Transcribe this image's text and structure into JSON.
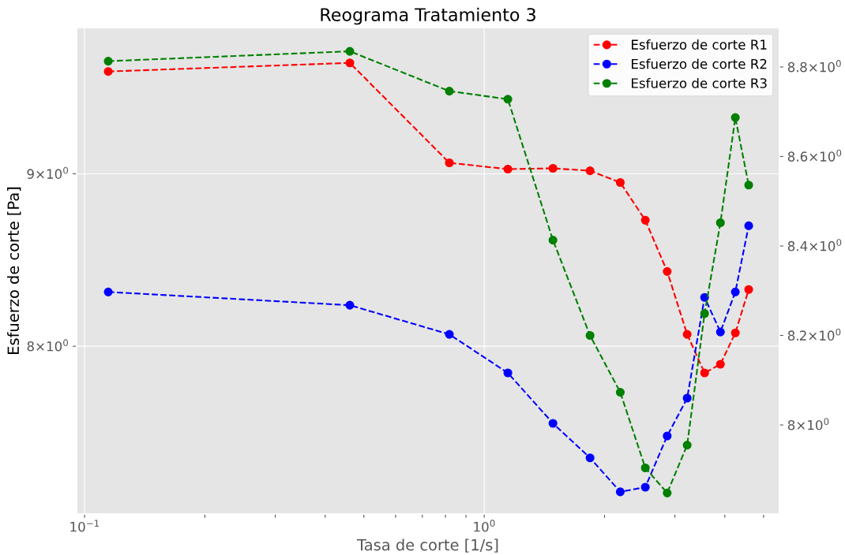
{
  "chart_data": {
    "type": "line",
    "title": "Reograma Tratamiento 3",
    "xlabel": "Tasa de corte [1/s]",
    "ylabel": "Esfuerzo de corte [Pa]",
    "x": [
      0.1146,
      0.461,
      0.818,
      1.146,
      1.486,
      1.84,
      2.19,
      2.53,
      2.87,
      3.22,
      3.56,
      3.9,
      4.25,
      4.59
    ],
    "series": [
      {
        "name": "Esfuerzo de corte R1",
        "color": "#ff0000",
        "values": [
          9.652,
          9.709,
          9.068,
          9.029,
          9.034,
          9.019,
          8.947,
          8.719,
          8.419,
          8.065,
          7.855,
          7.902,
          8.073,
          8.316
        ]
      },
      {
        "name": "Esfuerzo de corte R2",
        "color": "#0000ff",
        "values": [
          8.302,
          8.227,
          8.065,
          7.855,
          7.589,
          7.412,
          7.242,
          7.265,
          7.524,
          7.721,
          8.271,
          8.078,
          8.302,
          8.686
        ]
      },
      {
        "name": "Esfuerzo de corte R3",
        "color": "#008000",
        "axis": "y2",
        "values": [
          8.813,
          8.835,
          8.746,
          8.728,
          8.413,
          8.2,
          8.073,
          7.904,
          7.848,
          7.955,
          8.249,
          8.452,
          8.687,
          8.536
        ]
      }
    ],
    "log": "xy",
    "xlim": [
      0.0955,
      5.48
    ],
    "ylim": [
      7.133,
      9.946
    ],
    "y2lim": [
      7.801,
      8.888
    ],
    "xticks": [
      {
        "value": 0.1,
        "label": "10$^{−1}$"
      },
      {
        "value": 0.2,
        "label": null
      },
      {
        "value": 0.3,
        "label": null
      },
      {
        "value": 0.4,
        "label": null
      },
      {
        "value": 0.5,
        "label": null
      },
      {
        "value": 0.6,
        "label": null
      },
      {
        "value": 0.7,
        "label": null
      },
      {
        "value": 0.8,
        "label": null
      },
      {
        "value": 0.9,
        "label": null
      },
      {
        "value": 1,
        "label": "10$^{0}$"
      },
      {
        "value": 2,
        "label": null
      },
      {
        "value": 3,
        "label": null
      },
      {
        "value": 4,
        "label": null
      },
      {
        "value": 5,
        "label": null
      }
    ],
    "yticks": [
      {
        "value": 8,
        "label": "8×10$^{0}$"
      },
      {
        "value": 9,
        "label": "9×10$^{0}$"
      }
    ],
    "y2ticks": [
      {
        "value": 8.0,
        "label": "8×10$^{0}$"
      },
      {
        "value": 8.2,
        "label": "8.2×10$^{0}$"
      },
      {
        "value": 8.4,
        "label": "8.4×10$^{0}$"
      },
      {
        "value": 8.6,
        "label": "8.6×10$^{0}$"
      },
      {
        "value": 8.8,
        "label": "8.8×10$^{0}$"
      }
    ],
    "grid": true,
    "legend": "top right",
    "marker": "circle",
    "line_style": "dashed"
  }
}
